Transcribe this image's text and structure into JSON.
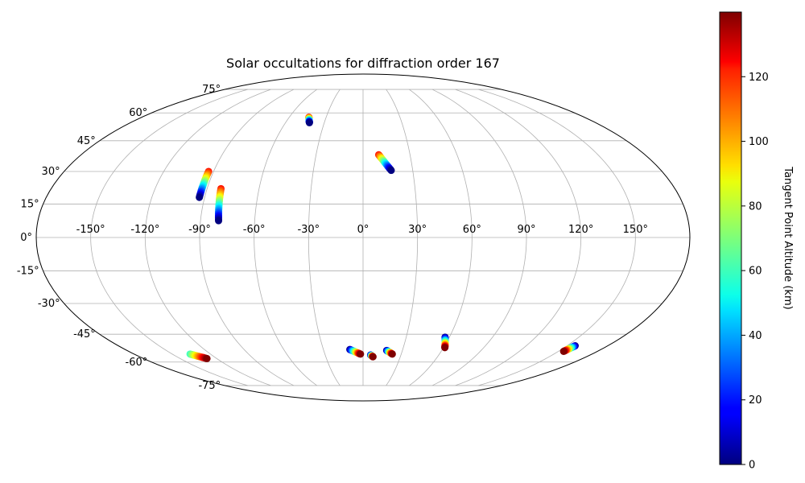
{
  "chart_data": {
    "type": "scatter",
    "title": "Solar occultations for diffraction order 167",
    "projection": "mollweide",
    "grid": true,
    "longitude_ticks": [
      "-150°",
      "-120°",
      "-90°",
      "-60°",
      "-30°",
      "0°",
      "30°",
      "60°",
      "90°",
      "120°",
      "150°"
    ],
    "longitude_values": [
      -150,
      -120,
      -90,
      -60,
      -30,
      0,
      30,
      60,
      90,
      120,
      150
    ],
    "latitude_ticks": [
      "75°",
      "60°",
      "45°",
      "30°",
      "15°",
      "0°",
      "-15°",
      "-30°",
      "-45°",
      "-60°",
      "-75°"
    ],
    "latitude_values": [
      75,
      60,
      45,
      30,
      15,
      0,
      -15,
      -30,
      -45,
      -60,
      -75
    ],
    "colorbar": {
      "label": "Tangent Point Altitude (km)",
      "colormap": "jet",
      "range": [
        0,
        140
      ],
      "ticks": [
        "0",
        "20",
        "40",
        "60",
        "80",
        "100",
        "120"
      ],
      "tick_values": [
        0,
        20,
        40,
        60,
        80,
        100,
        120
      ]
    },
    "occultations": [
      {
        "start": [
          -44,
          57.5
        ],
        "end": [
          -41.5,
          54.5
        ],
        "alt_start": 120,
        "alt_end": 0
      },
      {
        "start": [
          -93,
          30
        ],
        "end": [
          -93,
          18
        ],
        "alt_start": 120,
        "alt_end": 0
      },
      {
        "start": [
          -82,
          22
        ],
        "end": [
          -80,
          7.5
        ],
        "alt_start": 120,
        "alt_end": 0
      },
      {
        "start": [
          10,
          38
        ],
        "end": [
          17,
          30.5
        ],
        "alt_start": 120,
        "alt_end": 0
      },
      {
        "start": [
          -10,
          -53
        ],
        "end": [
          -2,
          -55.5
        ],
        "alt_start": 0,
        "alt_end": 140
      },
      {
        "start": [
          6,
          -56
        ],
        "end": [
          8,
          -57
        ],
        "alt_start": 0,
        "alt_end": 140
      },
      {
        "start": [
          18,
          -53.5
        ],
        "end": [
          23,
          -55.5
        ],
        "alt_start": 0,
        "alt_end": 140
      },
      {
        "start": [
          57,
          -46.5
        ],
        "end": [
          61,
          -52
        ],
        "alt_start": 0,
        "alt_end": 140
      },
      {
        "start": [
          -136,
          -55.5
        ],
        "end": [
          -128,
          -58
        ],
        "alt_start": 60,
        "alt_end": 140
      },
      {
        "start": [
          156,
          -51
        ],
        "end": [
          154,
          -54
        ],
        "alt_start": 0,
        "alt_end": 140
      }
    ]
  }
}
